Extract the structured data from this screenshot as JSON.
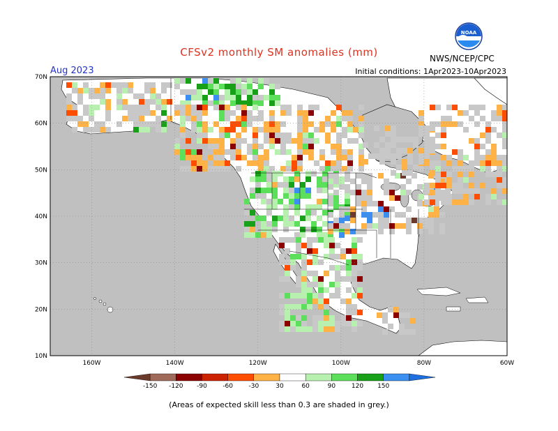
{
  "header": {
    "title": "CFSv2 monthly SM anomalies (mm)",
    "month": "Aug 2023",
    "initial_conditions": "Initial conditions: 1Apr2023-10Apr2023",
    "agency": "NWS/NCEP/CPC",
    "logo_text": "NOAA"
  },
  "map": {
    "lat_labels": [
      "70N",
      "60N",
      "50N",
      "40N",
      "30N",
      "20N",
      "10N"
    ],
    "lon_labels": [
      "160W",
      "140W",
      "120W",
      "100W",
      "80W",
      "60W"
    ],
    "extent": {
      "lon_min": -170,
      "lon_max": -60,
      "lat_min": 10,
      "lat_max": 70
    },
    "colors": {
      "ocean": "#c0c0c0",
      "land": "#ffffff",
      "grey_skill": "#c8c8c8",
      "border": "#000000"
    }
  },
  "colorbar": {
    "labels": [
      "-150",
      "-120",
      "-90",
      "-60",
      "-30",
      "30",
      "60",
      "90",
      "120",
      "150"
    ],
    "colors": [
      "#6b3a2a",
      "#a06a5a",
      "#8b0000",
      "#cc2200",
      "#ff4d00",
      "#ffb347",
      "#ffffff",
      "#b8f0b0",
      "#5ce05c",
      "#18a018",
      "#3a8ff0",
      "#1e6fe0"
    ]
  },
  "footnote": "(Areas of expected skill less than 0.3 are shaded in grey.)"
}
